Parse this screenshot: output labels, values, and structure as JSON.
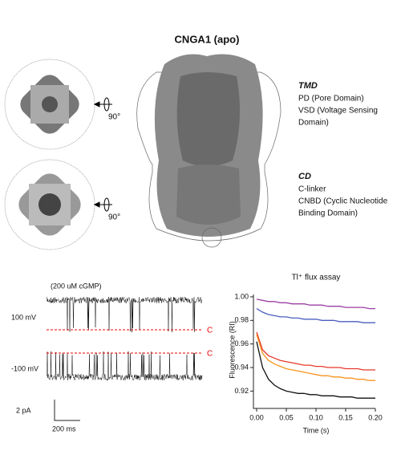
{
  "header": {
    "title": "CNGA1 (apo)"
  },
  "annotations": {
    "tmd": {
      "title": "TMD",
      "lines": [
        "PD (Pore Domain)",
        "VSD (Voltage Sensing",
        "Domain)"
      ]
    },
    "cd": {
      "title": "CD",
      "lines": [
        "C-linker",
        "CNBD (Cyclic Nucleotide",
        "Binding Domain)"
      ]
    }
  },
  "rotation_labels": [
    "90°",
    "90°"
  ],
  "traces": {
    "condition": "(200 uM cGMP)",
    "rows": [
      {
        "label": "100 mV",
        "marker": "C"
      },
      {
        "label": "-100 mV",
        "marker": "C"
      }
    ],
    "scale_y": "2 pA",
    "scale_x": "200 ms"
  },
  "chart_data": {
    "type": "line",
    "title": "Tl⁺ flux assay",
    "x_label": "Time (s)",
    "y_label": "Fluorescence (RI)",
    "x": [
      0,
      0.01,
      0.02,
      0.03,
      0.04,
      0.05,
      0.06,
      0.07,
      0.08,
      0.09,
      0.1,
      0.11,
      0.12,
      0.13,
      0.14,
      0.15,
      0.16,
      0.17,
      0.18,
      0.19,
      0.2
    ],
    "xlim": [
      0,
      0.2
    ],
    "ylim": [
      0.908,
      1.002
    ],
    "xticks": [
      {
        "value": 0,
        "label": "0.00"
      },
      0.05,
      {
        "value": 0.1,
        "label": "0.10"
      },
      0.15,
      {
        "value": 0.2,
        "label": "0.20"
      }
    ],
    "yticks": [
      0.92,
      0.94,
      0.96,
      0.98,
      {
        "value": 1,
        "label": "1.00"
      }
    ],
    "series": [
      {
        "color": "#9b3fa3",
        "values": [
          0.998,
          0.997,
          0.996,
          0.996,
          0.995,
          0.995,
          0.994,
          0.994,
          0.994,
          0.993,
          0.993,
          0.993,
          0.992,
          0.992,
          0.992,
          0.991,
          0.991,
          0.991,
          0.991,
          0.99,
          0.99
        ]
      },
      {
        "color": "#4a5fbf",
        "values": [
          0.99,
          0.987,
          0.985,
          0.984,
          0.983,
          0.983,
          0.982,
          0.982,
          0.981,
          0.981,
          0.981,
          0.98,
          0.98,
          0.98,
          0.979,
          0.979,
          0.979,
          0.979,
          0.978,
          0.978,
          0.978
        ]
      },
      {
        "color": "#e8382a",
        "values": [
          0.97,
          0.955,
          0.95,
          0.948,
          0.946,
          0.945,
          0.944,
          0.943,
          0.942,
          0.942,
          0.941,
          0.941,
          0.94,
          0.94,
          0.94,
          0.939,
          0.939,
          0.939,
          0.938,
          0.938,
          0.938
        ]
      },
      {
        "color": "#f7931e",
        "values": [
          0.968,
          0.952,
          0.946,
          0.943,
          0.941,
          0.939,
          0.938,
          0.937,
          0.936,
          0.935,
          0.934,
          0.933,
          0.933,
          0.932,
          0.932,
          0.931,
          0.931,
          0.93,
          0.93,
          0.929,
          0.929
        ]
      },
      {
        "color": "#111111",
        "values": [
          0.962,
          0.94,
          0.93,
          0.925,
          0.922,
          0.92,
          0.919,
          0.918,
          0.918,
          0.917,
          0.917,
          0.916,
          0.916,
          0.916,
          0.915,
          0.915,
          0.915,
          0.914,
          0.914,
          0.914,
          0.914
        ]
      }
    ]
  }
}
